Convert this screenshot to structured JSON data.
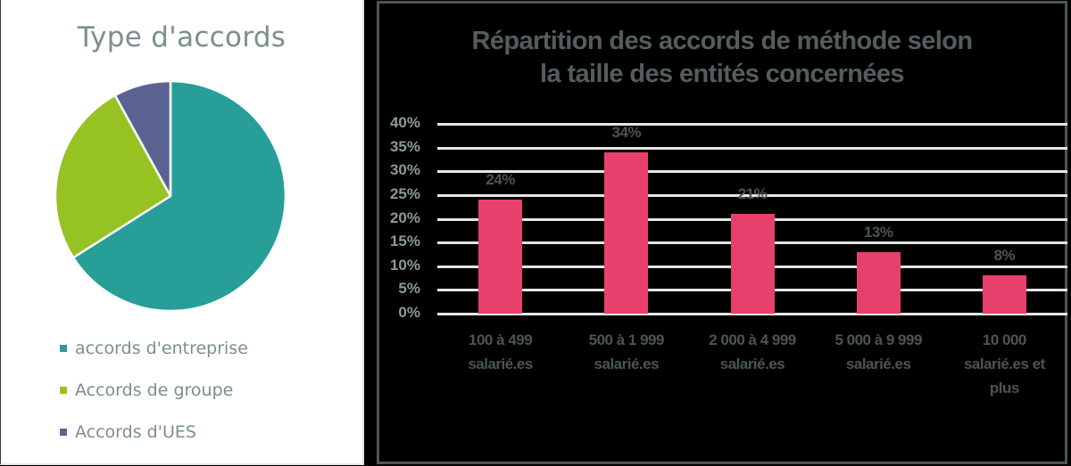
{
  "pie_chart": {
    "title": "Type d'accords",
    "legend": [
      {
        "label": "accords d'entreprise",
        "color": "#279e98"
      },
      {
        "label": "Accords de groupe",
        "color": "#97c224"
      },
      {
        "label": "Accords d'UES",
        "color": "#5b6393"
      }
    ]
  },
  "bar_chart": {
    "title_line1": "Répartition des accords de méthode selon",
    "title_line2": "la taille des entités concernées",
    "yticks": [
      "40%",
      "35%",
      "30%",
      "25%",
      "20%",
      "15%",
      "10%",
      "5%",
      "0%"
    ],
    "bars": [
      {
        "label": "24%",
        "xlabel_lines": [
          "100 à 499",
          "salarié.es"
        ]
      },
      {
        "label": "34%",
        "xlabel_lines": [
          "500 à 1 999",
          "salarié.es"
        ]
      },
      {
        "label": "21%",
        "xlabel_lines": [
          "2 000 à 4 999",
          "salarié.es"
        ]
      },
      {
        "label": "13%",
        "xlabel_lines": [
          "5 000 à 9 999",
          "salarié.es"
        ]
      },
      {
        "label": "8%",
        "xlabel_lines": [
          "10 000",
          "salarié.es et",
          "plus"
        ]
      }
    ],
    "bar_color": "#e8406c"
  },
  "chart_data": [
    {
      "type": "pie",
      "title": "Type d'accords",
      "categories": [
        "accords d'entreprise",
        "Accords de groupe",
        "Accords d'UES"
      ],
      "values": [
        66,
        26,
        8
      ],
      "colors": [
        "#279e98",
        "#97c224",
        "#5b6393"
      ],
      "legend_position": "bottom"
    },
    {
      "type": "bar",
      "title": "Répartition des accords de méthode selon la taille des entités concernées",
      "categories": [
        "100 à 499 salarié.es",
        "500 à 1 999 salarié.es",
        "2 000 à 4 999 salarié.es",
        "5 000 à 9 999 salarié.es",
        "10 000 salarié.es et plus"
      ],
      "values": [
        24,
        34,
        21,
        13,
        8
      ],
      "value_labels": [
        "24%",
        "34%",
        "21%",
        "13%",
        "8%"
      ],
      "xlabel": "",
      "ylabel": "",
      "ylim": [
        0,
        40
      ],
      "yticks": [
        "0%",
        "5%",
        "10%",
        "15%",
        "20%",
        "25%",
        "30%",
        "35%",
        "40%"
      ],
      "grid": true,
      "legend": false
    }
  ]
}
